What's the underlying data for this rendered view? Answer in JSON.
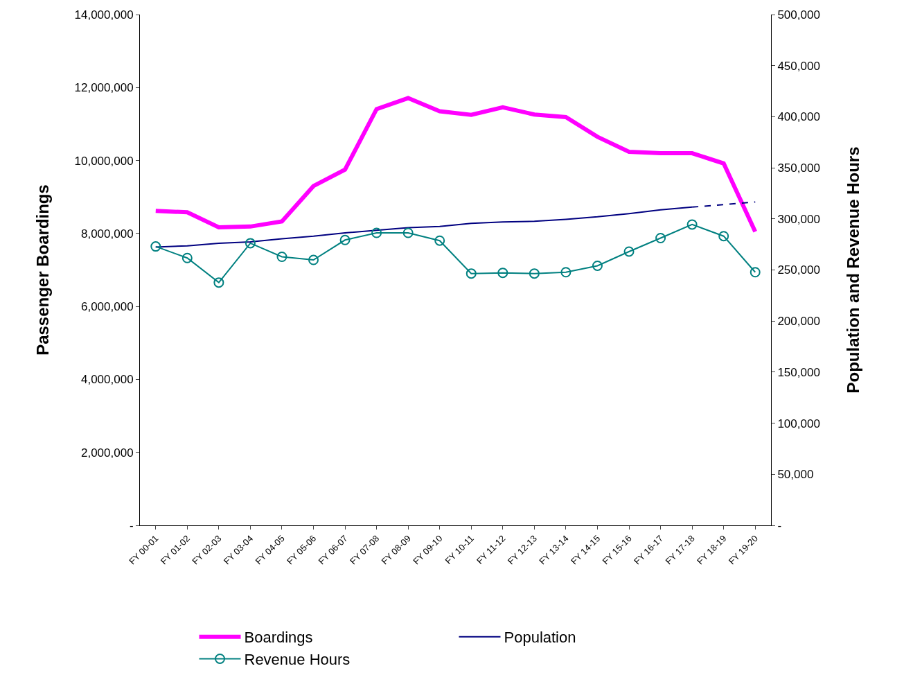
{
  "chart_data": {
    "type": "line",
    "categories": [
      "FY 00-01",
      "FY 01-02",
      "FY 02-03",
      "FY 03-04",
      "FY 04-05",
      "FY 05-06",
      "FY 06-07",
      "FY 07-08",
      "FY 08-09",
      "FY 09-10",
      "FY 10-11",
      "FY 11-12",
      "FY 12-13",
      "FY 13-14",
      "FY 14-15",
      "FY 15-16",
      "FY 16-17",
      "FY 17-18",
      "FY 18-19",
      "FY 19-20"
    ],
    "ylabel": "Passenger Boardings",
    "y2label": "Population and Revenue Hours",
    "ylim": [
      0,
      14000000
    ],
    "yticks": [
      {
        "value": 0,
        "label": "-"
      },
      {
        "value": 2000000,
        "label": "2,000,000"
      },
      {
        "value": 4000000,
        "label": "4,000,000"
      },
      {
        "value": 6000000,
        "label": "6,000,000"
      },
      {
        "value": 8000000,
        "label": "8,000,000"
      },
      {
        "value": 10000000,
        "label": "10,000,000"
      },
      {
        "value": 12000000,
        "label": "12,000,000"
      },
      {
        "value": 14000000,
        "label": "14,000,000"
      }
    ],
    "y2lim": [
      0,
      500000
    ],
    "y2ticks": [
      {
        "value": 0,
        "label": "-"
      },
      {
        "value": 50000,
        "label": "50,000"
      },
      {
        "value": 100000,
        "label": "100,000"
      },
      {
        "value": 150000,
        "label": "150,000"
      },
      {
        "value": 200000,
        "label": "200,000"
      },
      {
        "value": 250000,
        "label": "250,000"
      },
      {
        "value": 300000,
        "label": "300,000"
      },
      {
        "value": 350000,
        "label": "350,000"
      },
      {
        "value": 400000,
        "label": "400,000"
      },
      {
        "value": 450000,
        "label": "450,000"
      },
      {
        "value": 500000,
        "label": "500,000"
      }
    ],
    "legend": "bottom",
    "series": [
      {
        "name": "Boardings",
        "color": "#ff00ff",
        "marker": "none",
        "line_style": "solid",
        "values": [
          8620000,
          8580000,
          8170000,
          8190000,
          8330000,
          9300000,
          9750000,
          11410000,
          11710000,
          11350000,
          11250000,
          11460000,
          11260000,
          11190000,
          10650000,
          10240000,
          10200000,
          10200000,
          9920000,
          8050000
        ]
      },
      {
        "name": "Population",
        "color": "#000080",
        "axis": "y2",
        "marker": "none",
        "line_style": "solid",
        "values": [
          272400,
          273600,
          276200,
          277400,
          280600,
          283100,
          286300,
          288800,
          291300,
          292600,
          295700,
          297000,
          297600,
          299500,
          302000,
          305200,
          308900,
          311500,
          null,
          null
        ]
      },
      {
        "color": "#000080",
        "axis": "y2",
        "marker": "none",
        "line_style": "dashed",
        "values": [
          null,
          null,
          null,
          null,
          null,
          null,
          null,
          null,
          null,
          null,
          null,
          null,
          null,
          null,
          null,
          null,
          null,
          311500,
          314000,
          316500
        ]
      },
      {
        "name": "Revenue Hours",
        "color": "#008080",
        "axis": "y2",
        "marker": "circle",
        "line_style": "solid",
        "values": [
          273000,
          261700,
          237700,
          276200,
          262900,
          259800,
          279300,
          286300,
          286300,
          278700,
          246500,
          247200,
          246500,
          247800,
          254100,
          268000,
          281200,
          294500,
          283100,
          247800
        ]
      }
    ]
  }
}
